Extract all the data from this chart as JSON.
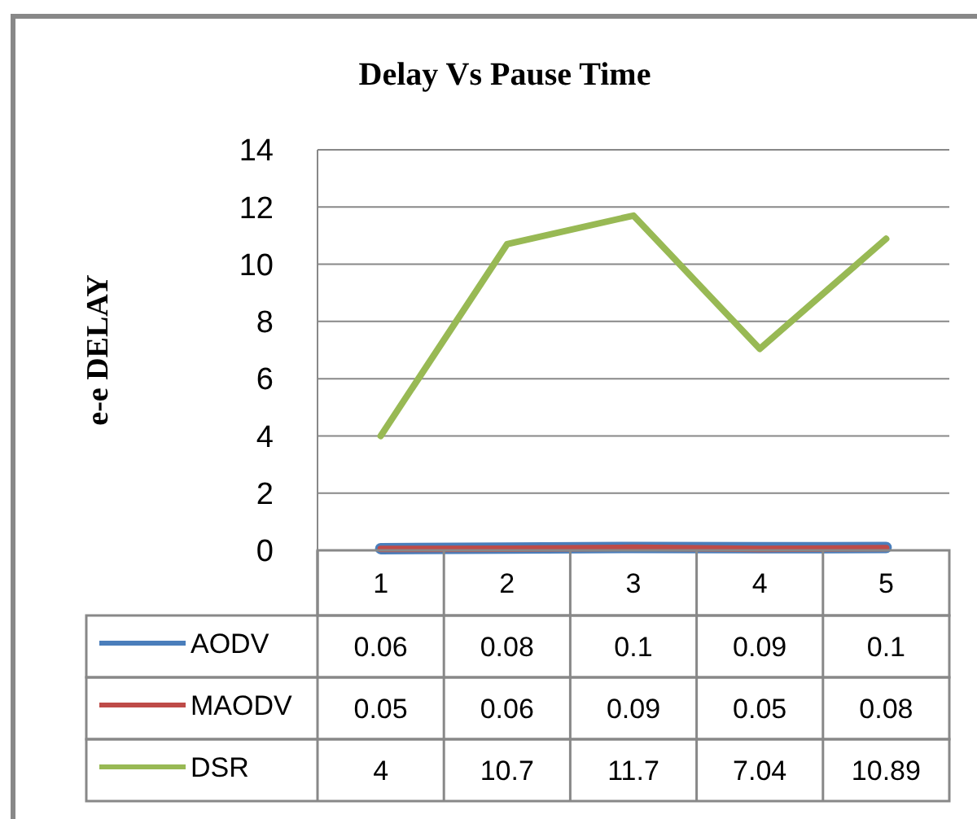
{
  "chart_data": {
    "type": "line",
    "title": "Delay Vs Pause Time",
    "ylabel": "e-e DELAY",
    "categories": [
      "1",
      "2",
      "3",
      "4",
      "5"
    ],
    "series": [
      {
        "name": "AODV",
        "color": "#4a7ebb",
        "values": [
          0.06,
          0.08,
          0.1,
          0.09,
          0.1
        ]
      },
      {
        "name": "MAODV",
        "color": "#be4b48",
        "values": [
          0.05,
          0.06,
          0.09,
          0.05,
          0.08
        ]
      },
      {
        "name": "DSR",
        "color": "#98b954",
        "values": [
          4,
          10.7,
          11.7,
          7.04,
          10.89
        ]
      }
    ],
    "ylim": [
      0,
      14
    ],
    "yticks": [
      0,
      2,
      4,
      6,
      8,
      10,
      12,
      14
    ],
    "grid": "y",
    "legend": "bottom",
    "data_labels": true,
    "marker": "none",
    "line_style": "solid"
  }
}
